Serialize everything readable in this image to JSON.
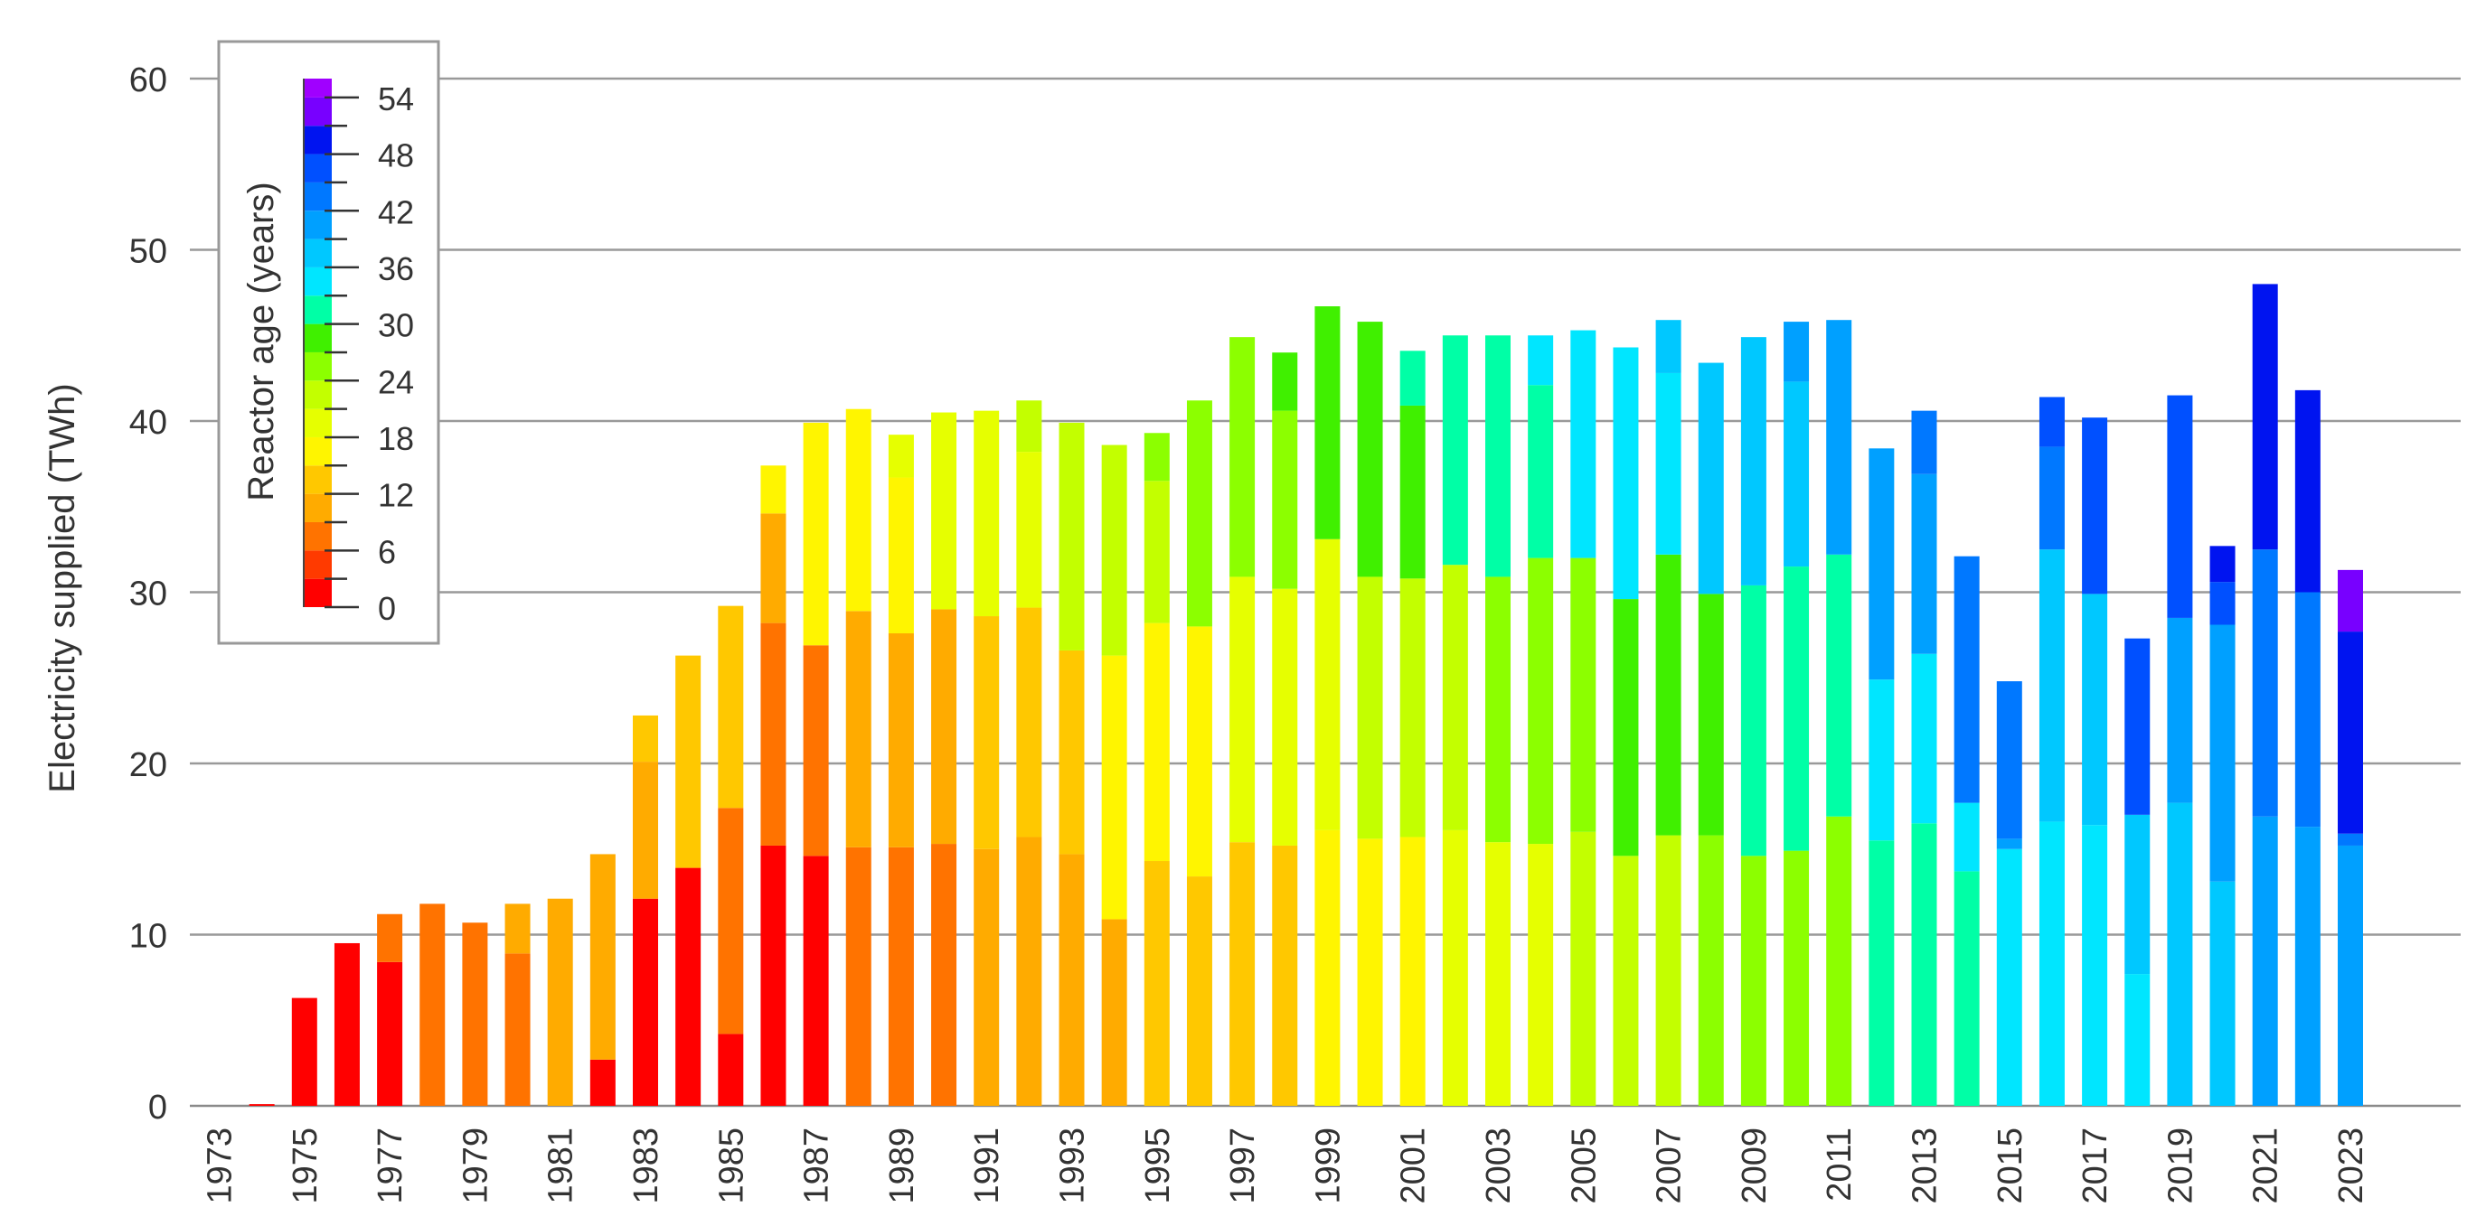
{
  "chart_data": {
    "type": "bar",
    "stacked": true,
    "ylabel": "Electricity supplied (TWh)",
    "xlabel": "",
    "ylim": [
      0,
      60
    ],
    "yticks": [
      0,
      10,
      20,
      30,
      40,
      50,
      60
    ],
    "grid": true,
    "legend": {
      "title": "Reactor age (years)",
      "placement": "top-left",
      "type": "colorbar",
      "range": [
        0,
        56
      ],
      "tick_labels": [
        "0",
        "6",
        "12",
        "18",
        "24",
        "30",
        "36",
        "42",
        "48",
        "54"
      ],
      "tick_values": [
        0,
        6,
        12,
        18,
        24,
        30,
        36,
        42,
        48,
        54
      ],
      "bins": [
        {
          "from": 0,
          "to": 3,
          "color": "#ff0000"
        },
        {
          "from": 3,
          "to": 6,
          "color": "#ff3a00"
        },
        {
          "from": 6,
          "to": 9,
          "color": "#ff7300"
        },
        {
          "from": 9,
          "to": 12,
          "color": "#ffab00"
        },
        {
          "from": 12,
          "to": 15,
          "color": "#ffc800"
        },
        {
          "from": 15,
          "to": 18,
          "color": "#fff500"
        },
        {
          "from": 18,
          "to": 21,
          "color": "#e6ff00"
        },
        {
          "from": 21,
          "to": 24,
          "color": "#c3ff00"
        },
        {
          "from": 24,
          "to": 27,
          "color": "#8cff00"
        },
        {
          "from": 27,
          "to": 30,
          "color": "#40f000"
        },
        {
          "from": 30,
          "to": 33,
          "color": "#00ffa6"
        },
        {
          "from": 33,
          "to": 36,
          "color": "#00e6ff"
        },
        {
          "from": 36,
          "to": 39,
          "color": "#00c8ff"
        },
        {
          "from": 39,
          "to": 42,
          "color": "#00a0ff"
        },
        {
          "from": 42,
          "to": 45,
          "color": "#0078ff"
        },
        {
          "from": 45,
          "to": 48,
          "color": "#0050ff"
        },
        {
          "from": 48,
          "to": 51,
          "color": "#0014f0"
        },
        {
          "from": 51,
          "to": 54,
          "color": "#7800ff"
        },
        {
          "from": 54,
          "to": 56,
          "color": "#a000ff"
        }
      ]
    },
    "x_tick_labels": [
      "1973",
      "1975",
      "1977",
      "1979",
      "1981",
      "1983",
      "1985",
      "1987",
      "1989",
      "1991",
      "1993",
      "1995",
      "1997",
      "1999",
      "2001",
      "2003",
      "2005",
      "2007",
      "2009",
      "2011",
      "2013",
      "2015",
      "2017",
      "2019",
      "2021",
      "2023"
    ],
    "categories": [
      "1973",
      "1974",
      "1975",
      "1976",
      "1977",
      "1978",
      "1979",
      "1980",
      "1981",
      "1982",
      "1983",
      "1984",
      "1985",
      "1986",
      "1987",
      "1988",
      "1989",
      "1990",
      "1991",
      "1992",
      "1993",
      "1994",
      "1995",
      "1996",
      "1997",
      "1998",
      "1999",
      "2000",
      "2001",
      "2002",
      "2003",
      "2004",
      "2005",
      "2006",
      "2007",
      "2008",
      "2009",
      "2010",
      "2011",
      "2012",
      "2013",
      "2014",
      "2015",
      "2016",
      "2017",
      "2018",
      "2019",
      "2020",
      "2021",
      "2022",
      "2023"
    ],
    "bars": [
      [],
      [
        {
          "value": 0.1,
          "color": "#ff0000"
        }
      ],
      [
        {
          "value": 6.3,
          "color": "#ff0000"
        }
      ],
      [
        {
          "value": 9.5,
          "color": "#ff0000"
        }
      ],
      [
        {
          "value": 8.4,
          "color": "#ff0000"
        },
        {
          "value": 2.8,
          "color": "#ff7300"
        }
      ],
      [
        {
          "value": 11.8,
          "color": "#ff7300"
        }
      ],
      [
        {
          "value": 10.7,
          "color": "#ff7300"
        }
      ],
      [
        {
          "value": 8.9,
          "color": "#ff7300"
        },
        {
          "value": 2.9,
          "color": "#ffab00"
        }
      ],
      [
        {
          "value": 12.1,
          "color": "#ffab00"
        }
      ],
      [
        {
          "value": 2.7,
          "color": "#ff0000"
        },
        {
          "value": 12.0,
          "color": "#ffab00"
        }
      ],
      [
        {
          "value": 12.1,
          "color": "#ff0000"
        },
        {
          "value": 8.0,
          "color": "#ffab00"
        },
        {
          "value": 2.7,
          "color": "#ffc800"
        }
      ],
      [
        {
          "value": 13.9,
          "color": "#ff0000"
        },
        {
          "value": 12.4,
          "color": "#ffc800"
        }
      ],
      [
        {
          "value": 4.2,
          "color": "#ff0000"
        },
        {
          "value": 13.2,
          "color": "#ff7300"
        },
        {
          "value": 11.8,
          "color": "#ffc800"
        }
      ],
      [
        {
          "value": 15.2,
          "color": "#ff0000"
        },
        {
          "value": 13.0,
          "color": "#ff7300"
        },
        {
          "value": 6.4,
          "color": "#ffab00"
        },
        {
          "value": 2.8,
          "color": "#fff500"
        }
      ],
      [
        {
          "value": 14.6,
          "color": "#ff0000"
        },
        {
          "value": 12.3,
          "color": "#ff7300"
        },
        {
          "value": 13.0,
          "color": "#fff500"
        }
      ],
      [
        {
          "value": 15.1,
          "color": "#ff7300"
        },
        {
          "value": 13.8,
          "color": "#ffab00"
        },
        {
          "value": 11.8,
          "color": "#fff500"
        }
      ],
      [
        {
          "value": 15.1,
          "color": "#ff7300"
        },
        {
          "value": 12.5,
          "color": "#ffab00"
        },
        {
          "value": 9.1,
          "color": "#fff500"
        },
        {
          "value": 2.5,
          "color": "#e6ff00"
        }
      ],
      [
        {
          "value": 15.3,
          "color": "#ff7300"
        },
        {
          "value": 13.7,
          "color": "#ffab00"
        },
        {
          "value": 11.5,
          "color": "#e6ff00"
        }
      ],
      [
        {
          "value": 15.0,
          "color": "#ffab00"
        },
        {
          "value": 13.6,
          "color": "#ffc800"
        },
        {
          "value": 12.0,
          "color": "#e6ff00"
        }
      ],
      [
        {
          "value": 15.7,
          "color": "#ffab00"
        },
        {
          "value": 13.4,
          "color": "#ffc800"
        },
        {
          "value": 9.1,
          "color": "#e6ff00"
        },
        {
          "value": 3.0,
          "color": "#c3ff00"
        }
      ],
      [
        {
          "value": 14.7,
          "color": "#ffab00"
        },
        {
          "value": 11.9,
          "color": "#ffc800"
        },
        {
          "value": 13.3,
          "color": "#c3ff00"
        }
      ],
      [
        {
          "value": 10.9,
          "color": "#ffab00"
        },
        {
          "value": 15.4,
          "color": "#fff500"
        },
        {
          "value": 12.3,
          "color": "#c3ff00"
        }
      ],
      [
        {
          "value": 14.3,
          "color": "#ffc800"
        },
        {
          "value": 13.9,
          "color": "#fff500"
        },
        {
          "value": 8.3,
          "color": "#c3ff00"
        },
        {
          "value": 2.8,
          "color": "#8cff00"
        }
      ],
      [
        {
          "value": 13.4,
          "color": "#ffc800"
        },
        {
          "value": 14.6,
          "color": "#fff500"
        },
        {
          "value": 13.2,
          "color": "#8cff00"
        }
      ],
      [
        {
          "value": 15.4,
          "color": "#ffc800"
        },
        {
          "value": 15.5,
          "color": "#e6ff00"
        },
        {
          "value": 14.0,
          "color": "#8cff00"
        }
      ],
      [
        {
          "value": 15.2,
          "color": "#ffc800"
        },
        {
          "value": 15.0,
          "color": "#e6ff00"
        },
        {
          "value": 10.4,
          "color": "#8cff00"
        },
        {
          "value": 3.4,
          "color": "#40f000"
        }
      ],
      [
        {
          "value": 16.1,
          "color": "#fff500"
        },
        {
          "value": 17.0,
          "color": "#e6ff00"
        },
        {
          "value": 13.6,
          "color": "#40f000"
        }
      ],
      [
        {
          "value": 15.6,
          "color": "#fff500"
        },
        {
          "value": 15.3,
          "color": "#c3ff00"
        },
        {
          "value": 14.9,
          "color": "#40f000"
        }
      ],
      [
        {
          "value": 15.7,
          "color": "#fff500"
        },
        {
          "value": 15.1,
          "color": "#c3ff00"
        },
        {
          "value": 10.1,
          "color": "#40f000"
        },
        {
          "value": 3.2,
          "color": "#00ffa6"
        }
      ],
      [
        {
          "value": 16.1,
          "color": "#e6ff00"
        },
        {
          "value": 15.5,
          "color": "#c3ff00"
        },
        {
          "value": 13.4,
          "color": "#00ffa6"
        }
      ],
      [
        {
          "value": 15.4,
          "color": "#e6ff00"
        },
        {
          "value": 15.5,
          "color": "#8cff00"
        },
        {
          "value": 14.1,
          "color": "#00ffa6"
        }
      ],
      [
        {
          "value": 15.3,
          "color": "#e6ff00"
        },
        {
          "value": 16.7,
          "color": "#8cff00"
        },
        {
          "value": 10.1,
          "color": "#00ffa6"
        },
        {
          "value": 2.9,
          "color": "#00e6ff"
        }
      ],
      [
        {
          "value": 16.0,
          "color": "#c3ff00"
        },
        {
          "value": 16.0,
          "color": "#8cff00"
        },
        {
          "value": 13.3,
          "color": "#00e6ff"
        }
      ],
      [
        {
          "value": 14.6,
          "color": "#c3ff00"
        },
        {
          "value": 15.0,
          "color": "#40f000"
        },
        {
          "value": 14.7,
          "color": "#00e6ff"
        }
      ],
      [
        {
          "value": 15.8,
          "color": "#c3ff00"
        },
        {
          "value": 16.4,
          "color": "#40f000"
        },
        {
          "value": 10.6,
          "color": "#00e6ff"
        },
        {
          "value": 3.1,
          "color": "#00c8ff"
        }
      ],
      [
        {
          "value": 15.8,
          "color": "#8cff00"
        },
        {
          "value": 14.1,
          "color": "#40f000"
        },
        {
          "value": 13.5,
          "color": "#00c8ff"
        }
      ],
      [
        {
          "value": 14.6,
          "color": "#8cff00"
        },
        {
          "value": 15.8,
          "color": "#00ffa6"
        },
        {
          "value": 14.5,
          "color": "#00c8ff"
        }
      ],
      [
        {
          "value": 14.9,
          "color": "#8cff00"
        },
        {
          "value": 16.6,
          "color": "#00ffa6"
        },
        {
          "value": 10.8,
          "color": "#00c8ff"
        },
        {
          "value": 3.5,
          "color": "#00a0ff"
        }
      ],
      [
        {
          "value": 16.9,
          "color": "#8cff00"
        },
        {
          "value": 15.3,
          "color": "#00ffa6"
        },
        {
          "value": 13.7,
          "color": "#00a0ff"
        }
      ],
      [
        {
          "value": 15.5,
          "color": "#00ffa6"
        },
        {
          "value": 9.4,
          "color": "#00e6ff"
        },
        {
          "value": 13.5,
          "color": "#00a0ff"
        }
      ],
      [
        {
          "value": 16.5,
          "color": "#00ffa6"
        },
        {
          "value": 9.9,
          "color": "#00e6ff"
        },
        {
          "value": 10.5,
          "color": "#00a0ff"
        },
        {
          "value": 3.7,
          "color": "#0078ff"
        }
      ],
      [
        {
          "value": 13.7,
          "color": "#00ffa6"
        },
        {
          "value": 4.0,
          "color": "#00e6ff"
        },
        {
          "value": 14.4,
          "color": "#0078ff"
        }
      ],
      [
        {
          "value": 15.0,
          "color": "#00e6ff"
        },
        {
          "value": 0.6,
          "color": "#00a0ff"
        },
        {
          "value": 9.2,
          "color": "#0078ff"
        }
      ],
      [
        {
          "value": 16.6,
          "color": "#00e6ff"
        },
        {
          "value": 15.9,
          "color": "#00c8ff"
        },
        {
          "value": 6.0,
          "color": "#0078ff"
        },
        {
          "value": 2.9,
          "color": "#0050ff"
        }
      ],
      [
        {
          "value": 16.4,
          "color": "#00e6ff"
        },
        {
          "value": 13.5,
          "color": "#00c8ff"
        },
        {
          "value": 10.3,
          "color": "#0050ff"
        }
      ],
      [
        {
          "value": 7.7,
          "color": "#00e6ff"
        },
        {
          "value": 9.3,
          "color": "#00c8ff"
        },
        {
          "value": 10.3,
          "color": "#0050ff"
        }
      ],
      [
        {
          "value": 17.7,
          "color": "#00c8ff"
        },
        {
          "value": 10.8,
          "color": "#00a0ff"
        },
        {
          "value": 13.0,
          "color": "#0050ff"
        }
      ],
      [
        {
          "value": 13.1,
          "color": "#00c8ff"
        },
        {
          "value": 15.0,
          "color": "#00a0ff"
        },
        {
          "value": 2.5,
          "color": "#0050ff"
        },
        {
          "value": 2.1,
          "color": "#0014f0"
        }
      ],
      [
        {
          "value": 16.9,
          "color": "#00a0ff"
        },
        {
          "value": 15.6,
          "color": "#0078ff"
        },
        {
          "value": 15.5,
          "color": "#0014f0"
        }
      ],
      [
        {
          "value": 16.3,
          "color": "#00a0ff"
        },
        {
          "value": 13.7,
          "color": "#0078ff"
        },
        {
          "value": 11.8,
          "color": "#0014f0"
        }
      ],
      [
        {
          "value": 15.2,
          "color": "#00a0ff"
        },
        {
          "value": 0.7,
          "color": "#0078ff"
        },
        {
          "value": 11.8,
          "color": "#0014f0"
        },
        {
          "value": 3.6,
          "color": "#7800ff"
        }
      ]
    ]
  }
}
